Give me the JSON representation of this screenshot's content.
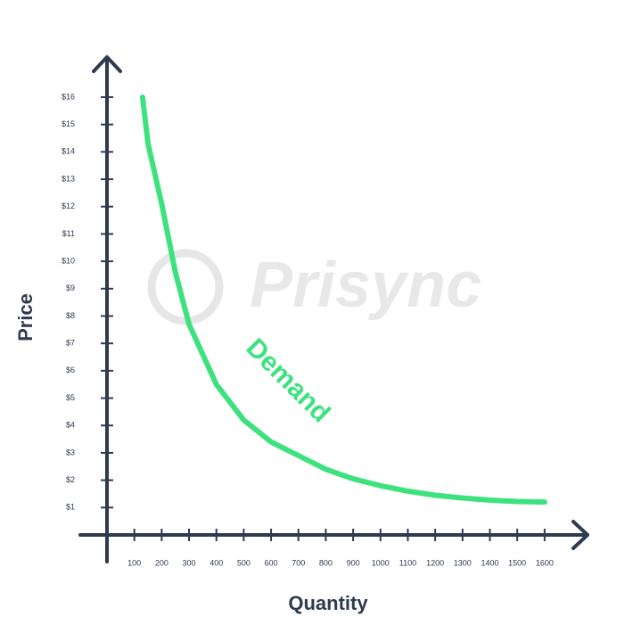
{
  "chart_data": {
    "type": "line",
    "x_label": "Quantity",
    "y_label": "Price",
    "annotation": "Demand",
    "watermark": "Prisync",
    "x": [
      130,
      150,
      200,
      250,
      300,
      400,
      500,
      600,
      700,
      800,
      900,
      1000,
      1100,
      1200,
      1300,
      1400,
      1500,
      1600
    ],
    "series": [
      {
        "name": "Demand",
        "color": "#3de27f",
        "values": [
          16,
          14.3,
          12.1,
          9.6,
          7.7,
          5.5,
          4.2,
          3.4,
          2.9,
          2.4,
          2.05,
          1.8,
          1.6,
          1.45,
          1.35,
          1.27,
          1.22,
          1.2
        ]
      }
    ],
    "xlim": [
      0,
      1757
    ],
    "ylim": [
      0,
      17.4
    ],
    "xticks": [
      100,
      200,
      300,
      400,
      500,
      600,
      700,
      800,
      900,
      1000,
      1100,
      1200,
      1300,
      1400,
      1500,
      1600
    ],
    "yticks": [
      {
        "value": 1,
        "label": "$1"
      },
      {
        "value": 2,
        "label": "$2"
      },
      {
        "value": 3,
        "label": "$3"
      },
      {
        "value": 4,
        "label": "$4"
      },
      {
        "value": 5,
        "label": "$5"
      },
      {
        "value": 6,
        "label": "$6"
      },
      {
        "value": 7,
        "label": "$7"
      },
      {
        "value": 8,
        "label": "$8"
      },
      {
        "value": 9,
        "label": "$9"
      },
      {
        "value": 10,
        "label": "$10"
      },
      {
        "value": 11,
        "label": "$11"
      },
      {
        "value": 12,
        "label": "$12"
      },
      {
        "value": 13,
        "label": "$13"
      },
      {
        "value": 14,
        "label": "$14"
      },
      {
        "value": 15,
        "label": "$15"
      },
      {
        "value": 16,
        "label": "$16"
      }
    ]
  }
}
